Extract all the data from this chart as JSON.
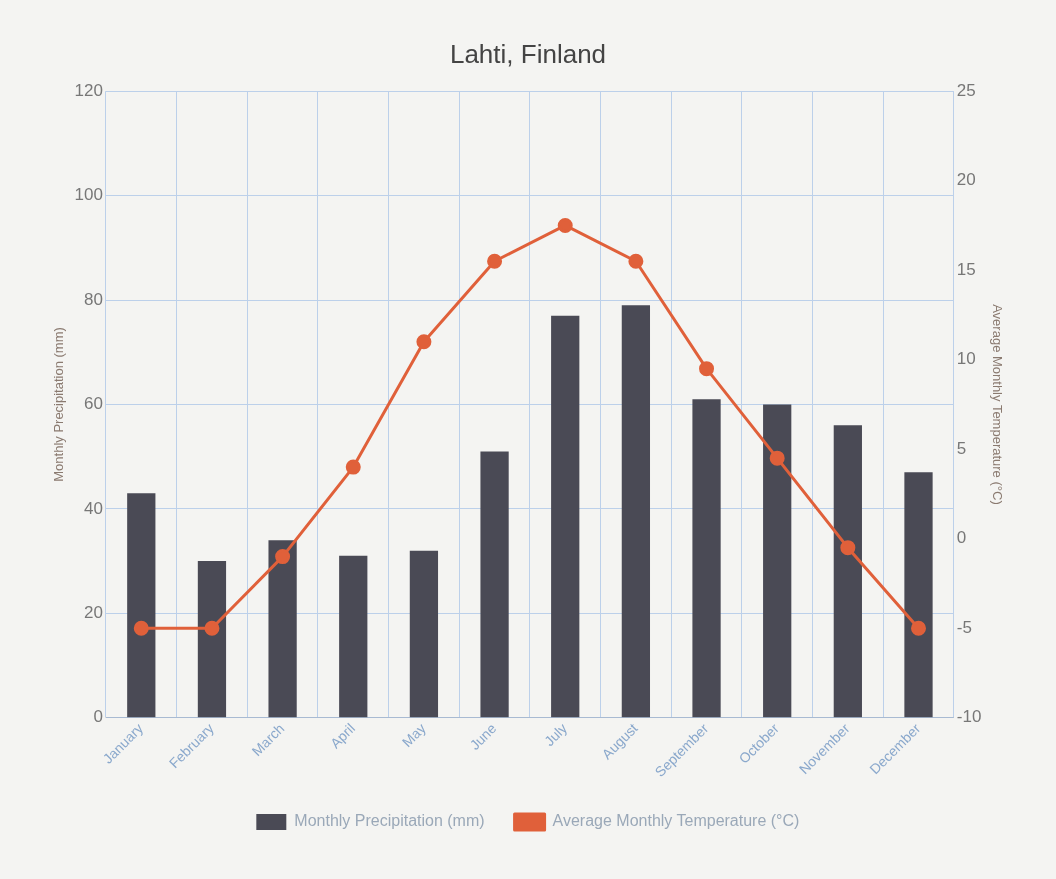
{
  "chart_data": {
    "type": "bar",
    "title": "Lahti, Finland",
    "categories": [
      "January",
      "February",
      "March",
      "April",
      "May",
      "June",
      "July",
      "August",
      "September",
      "October",
      "November",
      "December"
    ],
    "series": [
      {
        "name": "Monthly Precipitation (mm)",
        "color": "#4a4a55",
        "values": [
          43,
          30,
          34,
          31,
          32,
          51,
          77,
          79,
          61,
          60,
          56,
          47
        ]
      },
      {
        "name": "Average Monthly Temperature (°C)",
        "type": "line",
        "axis": "y2",
        "color": "#e0603a",
        "values": [
          -5,
          -5,
          -1,
          4,
          11,
          15.5,
          17.5,
          15.5,
          9.5,
          4.5,
          -0.5,
          -5
        ]
      }
    ],
    "ylabel": "Monthly Precipitation (mm)",
    "y2label": "Average Monthly Temperature (°C)",
    "ylim": [
      0,
      120
    ],
    "yticks": [
      0,
      20,
      40,
      60,
      80,
      100,
      120
    ],
    "y2lim": [
      -10,
      25
    ],
    "y2ticks": [
      -10,
      -5,
      0,
      5,
      10,
      15,
      20,
      25
    ],
    "grid": true,
    "legend": "bottom",
    "marker": "circle"
  }
}
